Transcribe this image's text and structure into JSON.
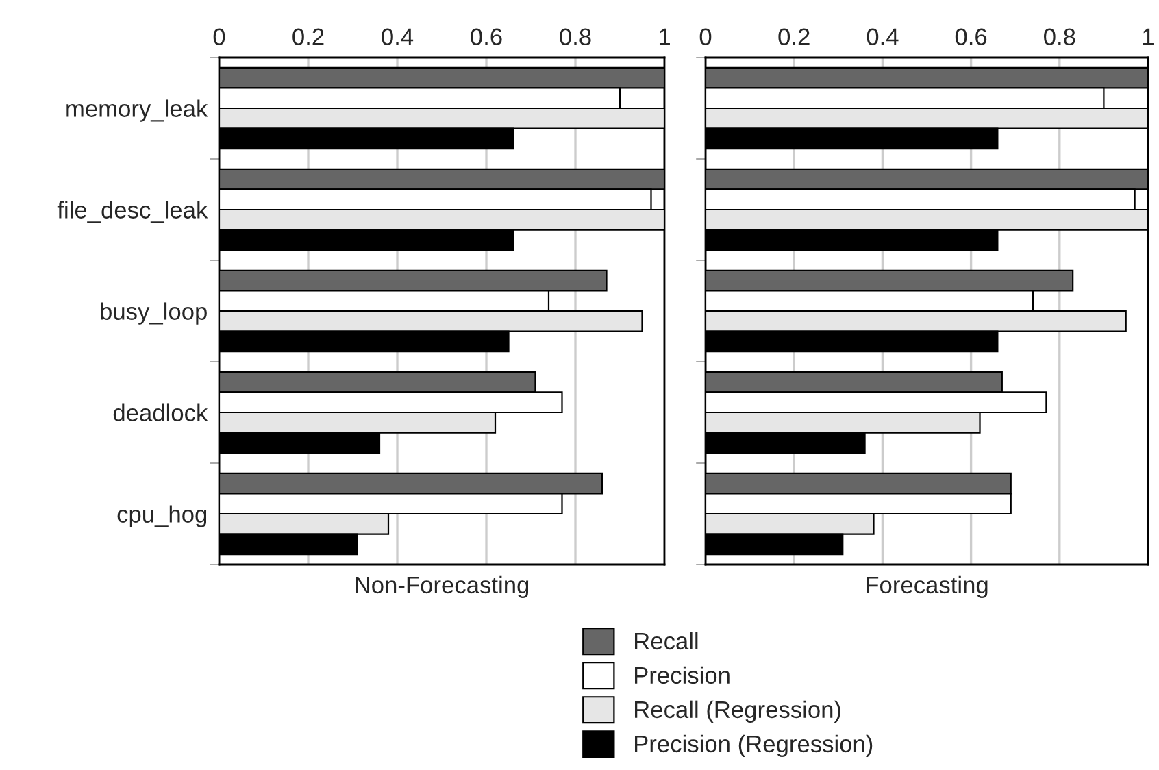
{
  "chart_data": [
    {
      "type": "bar",
      "orientation": "horizontal",
      "xlabel": "Non-Forecasting",
      "categories": [
        "memory_leak",
        "file_desc_leak",
        "busy_loop",
        "deadlock",
        "cpu_hog"
      ],
      "series": [
        {
          "name": "Recall",
          "color": "#666666",
          "values": [
            1.0,
            1.0,
            0.87,
            0.71,
            0.86
          ]
        },
        {
          "name": "Precision",
          "color": "#ffffff",
          "values": [
            0.9,
            0.97,
            0.74,
            0.77,
            0.77
          ]
        },
        {
          "name": "Recall (Regression)",
          "color": "#e6e6e6",
          "values": [
            1.0,
            1.0,
            0.95,
            0.62,
            0.38
          ]
        },
        {
          "name": "Precision (Regression)",
          "color": "#000000",
          "values": [
            0.66,
            0.66,
            0.65,
            0.36,
            0.31
          ]
        }
      ],
      "xlim": [
        0,
        1
      ],
      "xticks": [
        0,
        0.2,
        0.4,
        0.6,
        0.8,
        1
      ],
      "grid": "x",
      "legend": "bottom"
    },
    {
      "type": "bar",
      "orientation": "horizontal",
      "xlabel": "Forecasting",
      "categories": [
        null,
        null,
        null,
        null,
        null
      ],
      "series": [
        {
          "color": "#666666",
          "values": [
            1.0,
            1.0,
            0.83,
            0.67,
            0.69
          ]
        },
        {
          "color": "#ffffff",
          "values": [
            0.9,
            0.97,
            0.74,
            0.77,
            0.69
          ]
        },
        {
          "color": "#e6e6e6",
          "values": [
            1.0,
            1.0,
            0.95,
            0.62,
            0.38
          ]
        },
        {
          "color": "#000000",
          "values": [
            0.66,
            0.66,
            0.66,
            0.36,
            0.31
          ]
        }
      ],
      "xlim": [
        0,
        1
      ],
      "xticks": [
        0,
        0.2,
        0.4,
        0.6,
        0.8,
        1
      ],
      "grid": "x"
    }
  ]
}
